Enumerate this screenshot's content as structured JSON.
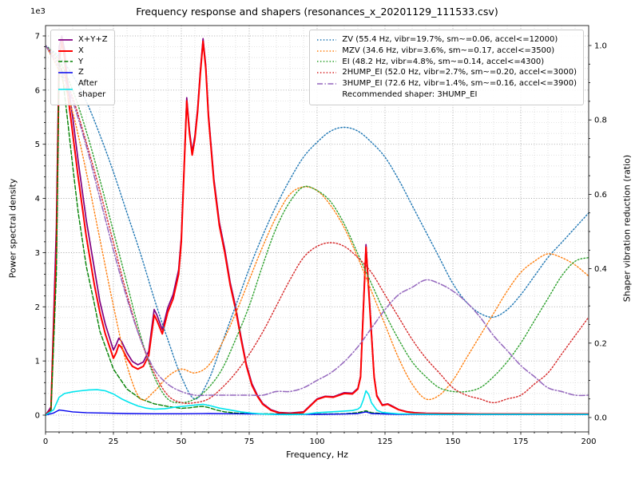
{
  "chart_data": {
    "type": "line",
    "title": "Frequency response and shapers (resonances_x_20201129_111533.csv)",
    "xlabel": "Frequency, Hz",
    "ylabel_left": "Power spectral density",
    "ylabel_right": "Shaper vibration reduction (ratio)",
    "offset_label": "1e3",
    "xlim": [
      0,
      200
    ],
    "ylim_left": [
      0,
      7000
    ],
    "ylim_right": [
      0,
      1
    ],
    "x_tick_values": [
      0,
      25,
      50,
      75,
      100,
      125,
      150,
      175,
      200
    ],
    "x_tick_labels": [
      "0",
      "25",
      "50",
      "75",
      "100",
      "125",
      "150",
      "175",
      "200"
    ],
    "y_left_tick_values": [
      0,
      1000,
      2000,
      3000,
      4000,
      5000,
      6000,
      7000
    ],
    "y_left_tick_labels": [
      "0",
      "1",
      "2",
      "3",
      "4",
      "5",
      "6",
      "7"
    ],
    "y_right_tick_values": [
      0,
      0.2,
      0.4,
      0.6,
      0.8,
      1.0
    ],
    "y_right_tick_labels": [
      "0.0",
      "0.2",
      "0.4",
      "0.6",
      "0.8",
      "1.0"
    ],
    "grid": {
      "major": true,
      "minor": true
    },
    "annotation": "Recommended shaper: 3HUMP_EI",
    "recommended_shaper": "3HUMP_EI",
    "psd_series": [
      {
        "name": "X+Y+Z",
        "color": "#800080",
        "style": "solid",
        "width": 1.7,
        "x": [
          0,
          2,
          4,
          5,
          6,
          7,
          8,
          10,
          12,
          15,
          18,
          20,
          22,
          25,
          26,
          27,
          28,
          30,
          32,
          34,
          36,
          38,
          40,
          41,
          43,
          45,
          47,
          49,
          50,
          51,
          52,
          53,
          54,
          55,
          56,
          57,
          58,
          59,
          60,
          62,
          64,
          66,
          68,
          70,
          72,
          74,
          76,
          78,
          80,
          83,
          86,
          90,
          95,
          100,
          103,
          106,
          110,
          113,
          115,
          116,
          117,
          118,
          119,
          120,
          121,
          122,
          124,
          126,
          128,
          130,
          133,
          136,
          140,
          150,
          160,
          170,
          180,
          190,
          200
        ],
        "y": [
          0,
          150,
          3500,
          6800,
          7000,
          6750,
          6200,
          5500,
          4700,
          3600,
          2700,
          2100,
          1680,
          1200,
          1300,
          1420,
          1360,
          1150,
          990,
          930,
          980,
          1180,
          1950,
          1850,
          1580,
          1980,
          2230,
          2680,
          3280,
          4560,
          5860,
          5260,
          4860,
          5160,
          5660,
          6360,
          6950,
          6460,
          5560,
          4360,
          3560,
          3060,
          2450,
          2000,
          1440,
          930,
          580,
          370,
          215,
          100,
          50,
          40,
          60,
          300,
          350,
          340,
          415,
          405,
          495,
          720,
          1950,
          3150,
          2350,
          1550,
          720,
          365,
          190,
          210,
          160,
          105,
          65,
          45,
          35,
          30,
          25,
          25,
          25,
          25,
          25
        ]
      },
      {
        "name": "X",
        "color": "#ff0000",
        "style": "solid",
        "width": 2.0,
        "x": [
          0,
          2,
          4,
          5,
          6,
          7,
          8,
          10,
          12,
          15,
          18,
          20,
          22,
          25,
          26,
          27,
          28,
          30,
          32,
          34,
          36,
          38,
          40,
          41,
          43,
          45,
          47,
          49,
          50,
          51,
          52,
          53,
          54,
          55,
          56,
          57,
          58,
          59,
          60,
          62,
          64,
          66,
          68,
          70,
          72,
          74,
          76,
          78,
          80,
          83,
          86,
          90,
          95,
          100,
          103,
          106,
          110,
          113,
          115,
          116,
          117,
          118,
          119,
          120,
          121,
          122,
          124,
          126,
          128,
          130,
          133,
          136,
          140,
          150,
          160,
          170,
          180,
          190,
          200
        ],
        "y": [
          0,
          100,
          3000,
          6500,
          6900,
          6600,
          6000,
          5200,
          4400,
          3300,
          2400,
          1900,
          1500,
          1050,
          1150,
          1300,
          1250,
          1050,
          900,
          850,
          900,
          1100,
          1850,
          1750,
          1500,
          1900,
          2150,
          2600,
          3200,
          4500,
          5800,
          5200,
          4800,
          5100,
          5600,
          6300,
          6900,
          6400,
          5500,
          4300,
          3500,
          3000,
          2400,
          1950,
          1400,
          900,
          550,
          350,
          200,
          90,
          40,
          30,
          50,
          290,
          340,
          330,
          400,
          390,
          480,
          700,
          1900,
          3100,
          2300,
          1500,
          700,
          350,
          180,
          200,
          150,
          100,
          60,
          40,
          30,
          25,
          20,
          20,
          20,
          20,
          20
        ]
      },
      {
        "name": "Y",
        "color": "#008000",
        "style": "dashed",
        "width": 1.4,
        "x": [
          0,
          2,
          4,
          5,
          6,
          8,
          10,
          12,
          15,
          18,
          20,
          25,
          30,
          35,
          40,
          45,
          50,
          53,
          56,
          58,
          60,
          63,
          66,
          70,
          75,
          80,
          90,
          100,
          110,
          115,
          118,
          120,
          125,
          130,
          140,
          160,
          180,
          200
        ],
        "y": [
          0,
          80,
          2600,
          6500,
          6350,
          5500,
          4600,
          3750,
          2750,
          2050,
          1550,
          850,
          480,
          300,
          210,
          160,
          125,
          135,
          155,
          160,
          140,
          95,
          60,
          40,
          30,
          25,
          20,
          20,
          25,
          45,
          80,
          45,
          25,
          20,
          15,
          15,
          15,
          15
        ]
      },
      {
        "name": "Z",
        "color": "#0000ee",
        "style": "solid",
        "width": 1.4,
        "x": [
          0,
          3,
          5,
          8,
          10,
          15,
          20,
          30,
          40,
          50,
          60,
          70,
          80,
          90,
          100,
          110,
          115,
          118,
          120,
          130,
          150,
          200
        ],
        "y": [
          0,
          40,
          95,
          75,
          60,
          45,
          40,
          30,
          25,
          25,
          30,
          25,
          20,
          15,
          15,
          20,
          30,
          60,
          30,
          15,
          10,
          10
        ]
      },
      {
        "name": "After\nshaper",
        "color": "#00e5ee",
        "style": "solid",
        "width": 1.6,
        "x": [
          0,
          3,
          5,
          7,
          10,
          13,
          16,
          19,
          22,
          25,
          28,
          31,
          34,
          37,
          40,
          44,
          48,
          52,
          55,
          58,
          61,
          64,
          68,
          72,
          76,
          80,
          85,
          90,
          95,
          100,
          105,
          110,
          113,
          115,
          116,
          117,
          118,
          119,
          120,
          122,
          124,
          127,
          130,
          135,
          140,
          150,
          160,
          180,
          200
        ],
        "y": [
          0,
          100,
          330,
          400,
          430,
          450,
          465,
          470,
          450,
          390,
          300,
          230,
          170,
          130,
          110,
          120,
          150,
          170,
          185,
          200,
          170,
          130,
          95,
          60,
          35,
          20,
          12,
          10,
          15,
          45,
          60,
          75,
          85,
          110,
          150,
          280,
          450,
          380,
          230,
          90,
          50,
          35,
          25,
          20,
          18,
          15,
          15,
          15,
          15
        ]
      }
    ],
    "shaper_x": [
      0,
      5,
      10,
      15,
      20,
      25,
      30,
      35,
      40,
      45,
      50,
      55,
      60,
      65,
      70,
      75,
      80,
      85,
      90,
      95,
      100,
      105,
      110,
      115,
      120,
      125,
      130,
      135,
      140,
      145,
      150,
      155,
      160,
      165,
      170,
      175,
      180,
      185,
      190,
      195,
      200
    ],
    "shaper_series": [
      {
        "name": "ZV (55.4 Hz, vibr=19.7%, sm~=0.06, accel<=12000)",
        "color": "#1f77b4",
        "style": "dotted",
        "width": 1.4,
        "y": [
          1.0,
          0.97,
          0.92,
          0.85,
          0.76,
          0.66,
          0.55,
          0.44,
          0.32,
          0.21,
          0.11,
          0.05,
          0.1,
          0.2,
          0.3,
          0.4,
          0.49,
          0.57,
          0.64,
          0.7,
          0.74,
          0.77,
          0.78,
          0.77,
          0.74,
          0.7,
          0.64,
          0.57,
          0.5,
          0.43,
          0.36,
          0.31,
          0.28,
          0.27,
          0.29,
          0.33,
          0.38,
          0.43,
          0.47,
          0.51,
          0.55
        ]
      },
      {
        "name": "MZV (34.6 Hz, vibr=3.6%, sm~=0.17, accel<=3500)",
        "color": "#ff7f0e",
        "style": "dotted",
        "width": 1.4,
        "y": [
          1.0,
          0.93,
          0.82,
          0.66,
          0.48,
          0.3,
          0.14,
          0.05,
          0.07,
          0.11,
          0.13,
          0.12,
          0.14,
          0.2,
          0.28,
          0.37,
          0.46,
          0.54,
          0.6,
          0.62,
          0.61,
          0.57,
          0.51,
          0.43,
          0.34,
          0.25,
          0.16,
          0.09,
          0.05,
          0.06,
          0.1,
          0.16,
          0.22,
          0.28,
          0.34,
          0.39,
          0.42,
          0.44,
          0.43,
          0.41,
          0.38
        ]
      },
      {
        "name": "EI (48.2 Hz, vibr=4.8%, sm~=0.14, accel<=4300)",
        "color": "#2ca02c",
        "style": "dotted",
        "width": 1.4,
        "y": [
          1.0,
          0.96,
          0.88,
          0.77,
          0.64,
          0.5,
          0.36,
          0.22,
          0.11,
          0.05,
          0.04,
          0.05,
          0.08,
          0.13,
          0.21,
          0.3,
          0.41,
          0.51,
          0.58,
          0.62,
          0.61,
          0.58,
          0.52,
          0.44,
          0.36,
          0.28,
          0.21,
          0.15,
          0.11,
          0.08,
          0.07,
          0.07,
          0.08,
          0.11,
          0.15,
          0.2,
          0.26,
          0.32,
          0.38,
          0.42,
          0.43
        ]
      },
      {
        "name": "2HUMP_EI (52.0 Hz, vibr=2.7%, sm~=0.20, accel<=3000)",
        "color": "#d62728",
        "style": "dotted",
        "width": 1.4,
        "y": [
          1.0,
          0.95,
          0.86,
          0.74,
          0.61,
          0.47,
          0.33,
          0.21,
          0.12,
          0.06,
          0.04,
          0.04,
          0.05,
          0.08,
          0.12,
          0.17,
          0.23,
          0.3,
          0.37,
          0.43,
          0.46,
          0.47,
          0.46,
          0.43,
          0.39,
          0.33,
          0.27,
          0.21,
          0.16,
          0.12,
          0.08,
          0.06,
          0.05,
          0.04,
          0.05,
          0.06,
          0.09,
          0.12,
          0.17,
          0.22,
          0.27
        ]
      },
      {
        "name": "3HUMP_EI (72.6 Hz, vibr=1.4%, sm~=0.16, accel<=3900)",
        "color": "#9467bd",
        "style": "dashdot",
        "width": 1.5,
        "y": [
          1.0,
          0.94,
          0.85,
          0.73,
          0.59,
          0.45,
          0.32,
          0.21,
          0.13,
          0.09,
          0.07,
          0.06,
          0.06,
          0.06,
          0.06,
          0.06,
          0.06,
          0.07,
          0.07,
          0.08,
          0.1,
          0.12,
          0.15,
          0.19,
          0.24,
          0.29,
          0.33,
          0.35,
          0.37,
          0.36,
          0.34,
          0.31,
          0.27,
          0.22,
          0.18,
          0.14,
          0.11,
          0.08,
          0.07,
          0.06,
          0.06
        ]
      }
    ]
  }
}
